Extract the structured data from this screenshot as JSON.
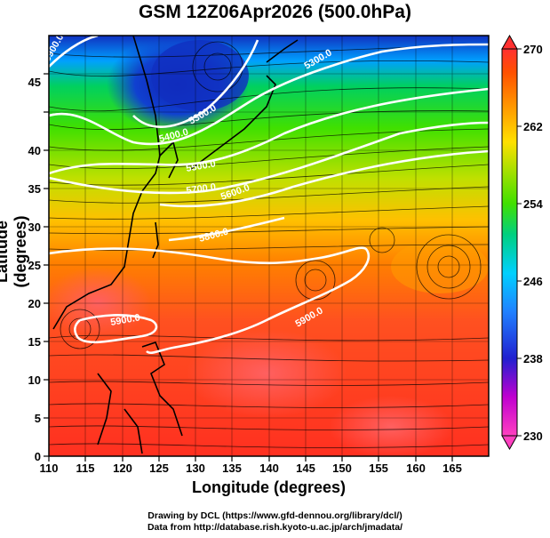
{
  "title": "GSM 12Z06Apr2026 (500.0hPa)",
  "x_axis": {
    "label": "Longitude (degrees)",
    "ticks": [
      "110",
      "115",
      "120",
      "125",
      "130",
      "135",
      "140",
      "145",
      "150",
      "155",
      "160",
      "165"
    ]
  },
  "y_axis": {
    "label": "Latitude (degrees)",
    "ticks": [
      "0",
      "5",
      "10",
      "15",
      "20",
      "25",
      "30",
      "35",
      "40",
      "45"
    ]
  },
  "colorbar": {
    "ticks": [
      "270",
      "262",
      "254",
      "246",
      "238",
      "230"
    ],
    "colors": [
      "#ff40c0",
      "#c000d0",
      "#2020d0",
      "#2080ff",
      "#00d0ff",
      "#00d080",
      "#40e000",
      "#a0e000",
      "#ffe000",
      "#ff9000",
      "#ff5000",
      "#ff3030"
    ]
  },
  "contour_labels": [
    "5300.0",
    "5300.0",
    "5400.0",
    "5500.0",
    "5600.0",
    "5700.0",
    "5800.0",
    "5900.0",
    "5900.0",
    "5900.0"
  ],
  "credits": [
    "Drawing by DCL (https://www.gfd-dennou.org/library/dcl/)",
    "Data from http://database.rish.kyoto-u.ac.jp/arch/jmadata/"
  ]
}
